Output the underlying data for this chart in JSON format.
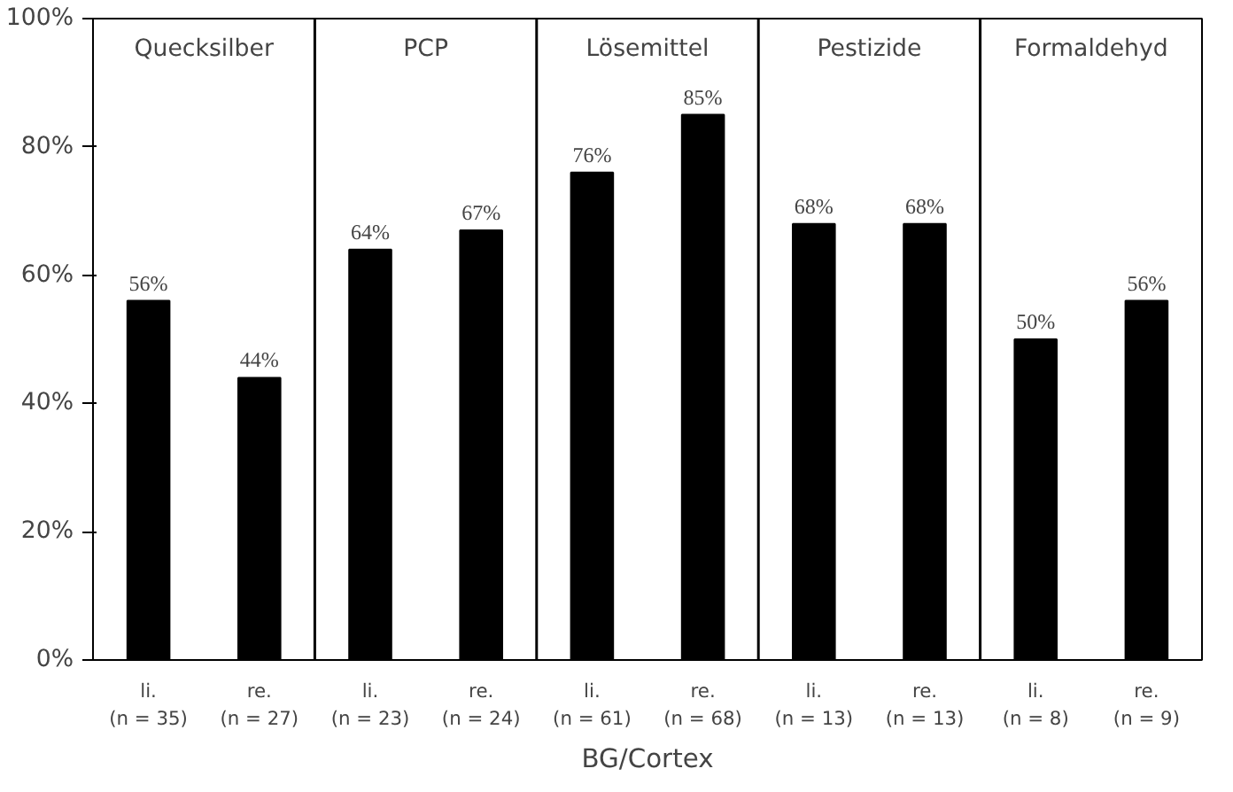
{
  "chart_data": {
    "type": "bar",
    "xlabel": "BG/Cortex",
    "categories": [
      "li.\n(n = 35)",
      "re.\n(n = 27)",
      "li.\n(n = 23)",
      "re.\n(n = 24)",
      "li.\n(n = 61)",
      "re.\n(n = 68)",
      "li.\n(n = 13)",
      "re.\n(n = 13)",
      "li.\n(n = 8)",
      "re.\n(n = 9)"
    ],
    "values": [
      56,
      44,
      64,
      67,
      76,
      85,
      68,
      68,
      50,
      56
    ],
    "value_labels": [
      "56%",
      "44%",
      "64%",
      "67%",
      "76%",
      "85%",
      "68%",
      "68%",
      "50%",
      "56%"
    ],
    "color": "#000000",
    "ylim": [
      0,
      100
    ],
    "yticks": [
      {
        "value": 0,
        "label": "0%"
      },
      {
        "value": 20,
        "label": "20%"
      },
      {
        "value": 40,
        "label": "40%"
      },
      {
        "value": 60,
        "label": "60%"
      },
      {
        "value": 80,
        "label": "80%"
      },
      {
        "value": 100,
        "label": "100%"
      }
    ],
    "annotations": [
      "Quecksilber",
      "PCP",
      "Lösemittel",
      "Pestizide",
      "Formaldehyd"
    ],
    "grid": false
  }
}
